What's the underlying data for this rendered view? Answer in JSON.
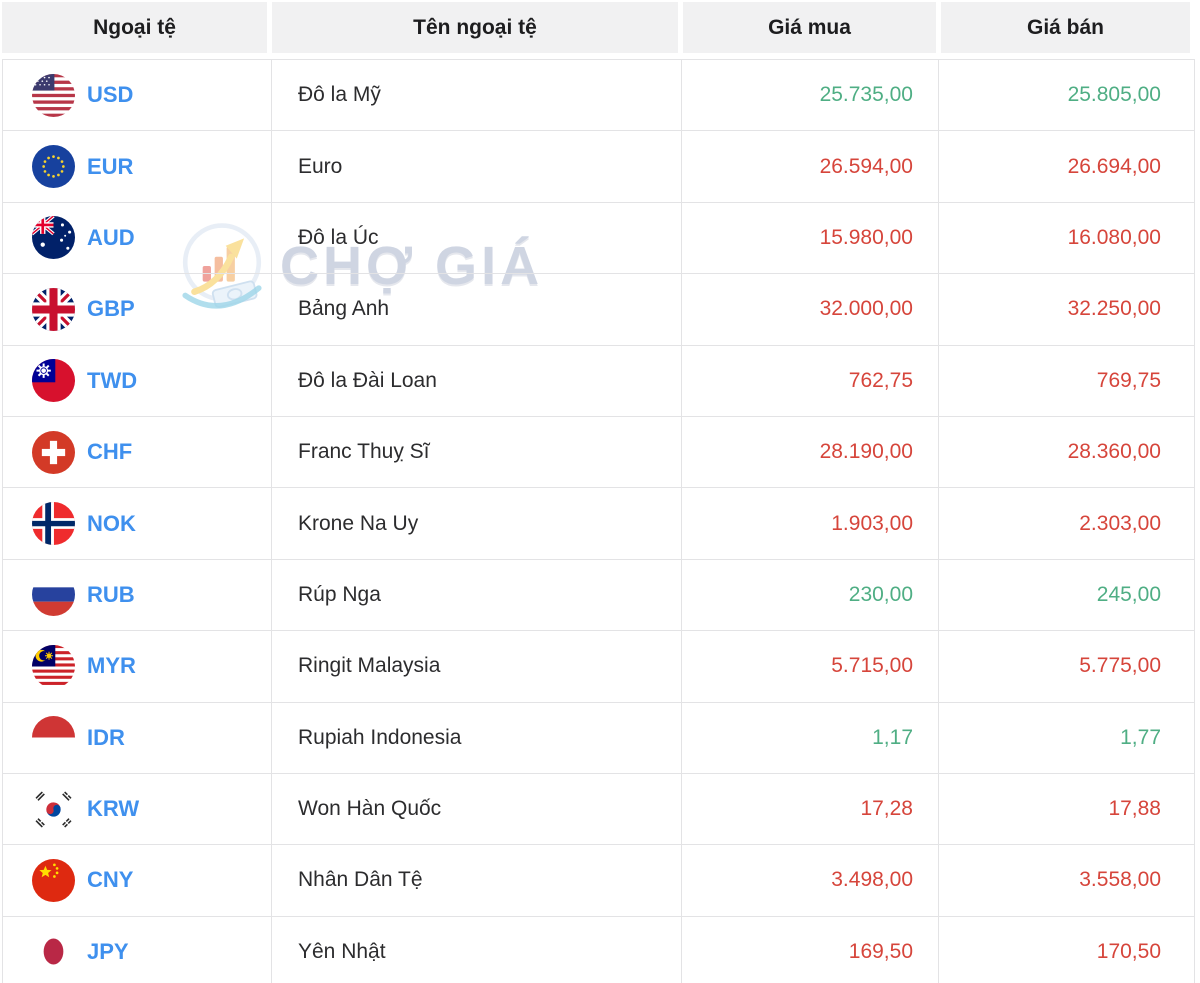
{
  "header": {
    "currency": "Ngoại tệ",
    "name": "Tên ngoại tệ",
    "buy": "Giá mua",
    "sell": "Giá bán"
  },
  "watermark": {
    "text": "CHỢ GIÁ",
    "logo": "cho-gia-logo-icon"
  },
  "colors": {
    "positive": "#4fae84",
    "negative": "#d6453b",
    "code_link": "#3f90ee",
    "header_bg": "#f1f1f2",
    "border": "#e3e3e5"
  },
  "rows": [
    {
      "code": "USD",
      "flag": "usd-flag-icon",
      "name": "Đô la Mỹ",
      "buy": "25.735,00",
      "sell": "25.805,00",
      "trend": "positive"
    },
    {
      "code": "EUR",
      "flag": "eur-flag-icon",
      "name": "Euro",
      "buy": "26.594,00",
      "sell": "26.694,00",
      "trend": "negative"
    },
    {
      "code": "AUD",
      "flag": "aud-flag-icon",
      "name": "Đô la Úc",
      "buy": "15.980,00",
      "sell": "16.080,00",
      "trend": "negative"
    },
    {
      "code": "GBP",
      "flag": "gbp-flag-icon",
      "name": "Bảng Anh",
      "buy": "32.000,00",
      "sell": "32.250,00",
      "trend": "negative"
    },
    {
      "code": "TWD",
      "flag": "twd-flag-icon",
      "name": "Đô la Đài Loan",
      "buy": "762,75",
      "sell": "769,75",
      "trend": "negative"
    },
    {
      "code": "CHF",
      "flag": "chf-flag-icon",
      "name": "Franc Thuỵ Sĩ",
      "buy": "28.190,00",
      "sell": "28.360,00",
      "trend": "negative"
    },
    {
      "code": "NOK",
      "flag": "nok-flag-icon",
      "name": "Krone Na Uy",
      "buy": "1.903,00",
      "sell": "2.303,00",
      "trend": "negative"
    },
    {
      "code": "RUB",
      "flag": "rub-flag-icon",
      "name": "Rúp Nga",
      "buy": "230,00",
      "sell": "245,00",
      "trend": "positive"
    },
    {
      "code": "MYR",
      "flag": "myr-flag-icon",
      "name": "Ringit Malaysia",
      "buy": "5.715,00",
      "sell": "5.775,00",
      "trend": "negative"
    },
    {
      "code": "IDR",
      "flag": "idr-flag-icon",
      "name": "Rupiah Indonesia",
      "buy": "1,17",
      "sell": "1,77",
      "trend": "positive"
    },
    {
      "code": "KRW",
      "flag": "krw-flag-icon",
      "name": "Won Hàn Quốc",
      "buy": "17,28",
      "sell": "17,88",
      "trend": "negative"
    },
    {
      "code": "CNY",
      "flag": "cny-flag-icon",
      "name": "Nhân Dân Tệ",
      "buy": "3.498,00",
      "sell": "3.558,00",
      "trend": "negative"
    },
    {
      "code": "JPY",
      "flag": "jpy-flag-icon",
      "name": "Yên Nhật",
      "buy": "169,50",
      "sell": "170,50",
      "trend": "negative"
    }
  ]
}
